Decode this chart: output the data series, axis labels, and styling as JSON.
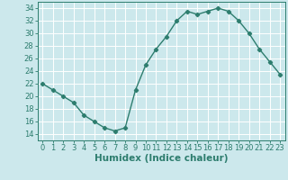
{
  "x": [
    0,
    1,
    2,
    3,
    4,
    5,
    6,
    7,
    8,
    9,
    10,
    11,
    12,
    13,
    14,
    15,
    16,
    17,
    18,
    19,
    20,
    21,
    22,
    23
  ],
  "y": [
    22,
    21,
    20,
    19,
    17,
    16,
    15,
    14.5,
    15,
    21,
    25,
    27.5,
    29.5,
    32,
    33.5,
    33,
    33.5,
    34,
    33.5,
    32,
    30,
    27.5,
    25.5,
    23.5
  ],
  "line_color": "#2d7d6e",
  "marker": "D",
  "marker_size": 2.2,
  "bg_color": "#cce8ec",
  "grid_color": "#ffffff",
  "xlabel": "Humidex (Indice chaleur)",
  "ylim": [
    13,
    35
  ],
  "xlim": [
    -0.5,
    23.5
  ],
  "yticks": [
    14,
    16,
    18,
    20,
    22,
    24,
    26,
    28,
    30,
    32,
    34
  ],
  "xticks": [
    0,
    1,
    2,
    3,
    4,
    5,
    6,
    7,
    8,
    9,
    10,
    11,
    12,
    13,
    14,
    15,
    16,
    17,
    18,
    19,
    20,
    21,
    22,
    23
  ],
  "tick_fontsize": 6,
  "xlabel_fontsize": 7.5
}
